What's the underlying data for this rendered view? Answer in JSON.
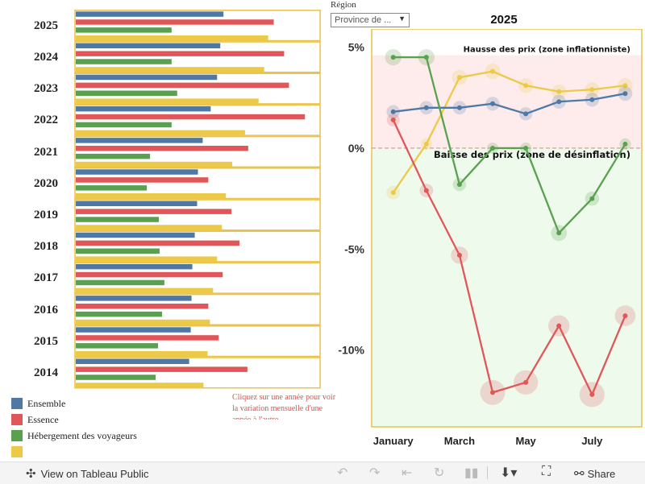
{
  "left_panel": {
    "years": [
      "2025",
      "2024",
      "2023",
      "2022",
      "2021",
      "2020",
      "2019",
      "2018",
      "2017",
      "2016",
      "2015",
      "2014"
    ],
    "click_hint": "Cliquez sur une année pour voir la variation mensuelle d'une année à l'autre"
  },
  "legend": [
    {
      "label": "Ensemble",
      "color": "#4e79a7"
    },
    {
      "label": "Essence",
      "color": "#e15759"
    },
    {
      "label": "Hébergement des voyageurs",
      "color": "#59a14f"
    },
    {
      "label": "",
      "color": "#edc948"
    }
  ],
  "filter": {
    "label": "Région",
    "value": "Province de ..."
  },
  "chart_data": [
    {
      "type": "bar",
      "orientation": "horizontal",
      "categories": [
        "2025",
        "2024",
        "2023",
        "2022",
        "2021",
        "2020",
        "2019",
        "2018",
        "2017",
        "2016",
        "2015",
        "2014"
      ],
      "series": [
        {
          "name": "Ensemble",
          "color": "#4e79a7",
          "values": [
            185,
            181,
            177,
            169,
            159,
            153,
            152,
            149,
            146,
            145,
            144,
            142
          ]
        },
        {
          "name": "Essence",
          "color": "#e15759",
          "values": [
            248,
            261,
            267,
            287,
            216,
            166,
            195,
            205,
            184,
            166,
            179,
            215
          ]
        },
        {
          "name": "Hébergement des voyageurs",
          "color": "#59a14f",
          "values": [
            120,
            120,
            127,
            120,
            93,
            89,
            104,
            105,
            111,
            108,
            103,
            100
          ]
        },
        {
          "name": "",
          "color": "#edc948",
          "values": [
            241,
            236,
            229,
            212,
            196,
            188,
            183,
            177,
            172,
            168,
            165,
            160
          ]
        }
      ],
      "xlim": [
        0,
        305
      ]
    },
    {
      "type": "line",
      "title": "2025",
      "x": [
        1,
        2,
        3,
        4,
        5,
        6,
        7,
        8
      ],
      "x_tick_labels": [
        {
          "x": 1,
          "label": "January"
        },
        {
          "x": 3,
          "label": "March"
        },
        {
          "x": 5,
          "label": "May"
        },
        {
          "x": 7,
          "label": "July"
        }
      ],
      "y_ticks": [
        5,
        0,
        -5,
        -10
      ],
      "y_tick_labels": [
        "5%",
        "0%",
        "-5%",
        "-10%"
      ],
      "ylim": [
        -13.8,
        5.9
      ],
      "zero_line": true,
      "annotations": {
        "upper": "Hausse des prix (zone inflationniste)",
        "lower": "Baisse des prix (zone de désinflation)"
      },
      "zones": {
        "upper_color": "#fdeceb",
        "lower_color": "#eefaec"
      },
      "series": [
        {
          "name": "Ensemble",
          "color": "#4e79a7",
          "values": [
            1.8,
            2.0,
            2.0,
            2.2,
            1.7,
            2.3,
            2.4,
            2.7
          ]
        },
        {
          "name": "Essence",
          "color": "#e15759",
          "values": [
            1.4,
            -2.1,
            -5.3,
            -12.1,
            -11.6,
            -8.8,
            -12.2,
            -8.3
          ]
        },
        {
          "name": "Hébergement des voyageurs",
          "color": "#59a14f",
          "values": [
            4.5,
            4.5,
            -1.8,
            0.0,
            0.0,
            -4.2,
            -2.5,
            0.2
          ]
        },
        {
          "name": "",
          "color": "#edc948",
          "values": [
            -2.2,
            0.2,
            3.5,
            3.8,
            3.1,
            2.8,
            2.9,
            3.1
          ]
        }
      ]
    }
  ],
  "toolbar": {
    "view_public": "View on Tableau Public",
    "share": "Share"
  }
}
